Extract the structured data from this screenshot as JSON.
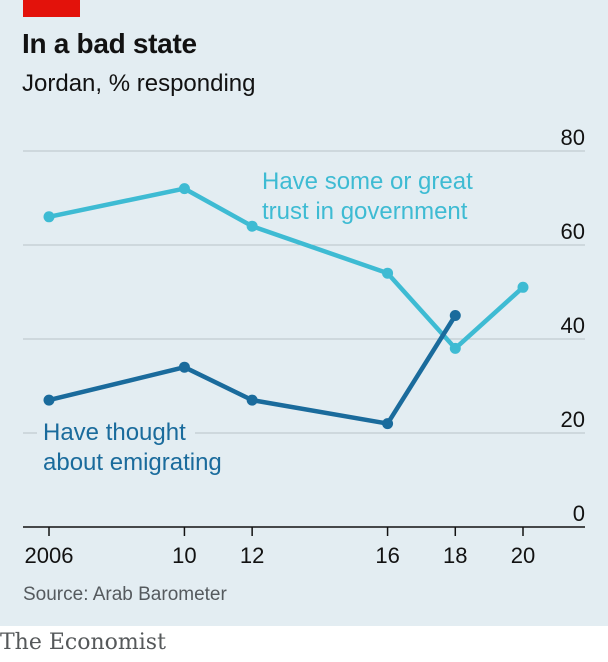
{
  "header": {
    "title": "In a bad state",
    "subtitle": "Jordan, % responding"
  },
  "footer": {
    "source": "Source: Arab Barometer",
    "brand": "The Economist"
  },
  "colors": {
    "background": "#e3edf2",
    "trust_series": "#3ebbd3",
    "emigration_series": "#1a6b9c",
    "grid": "#b9c3c8",
    "axis": "#121212",
    "accent_tag": "#e3120b"
  },
  "chart_data": {
    "type": "line",
    "x": [
      2006,
      2010,
      2012,
      2016,
      2018,
      2020
    ],
    "x_tick_labels": [
      "2006",
      "10",
      "12",
      "16",
      "18",
      "20"
    ],
    "y_ticks": [
      0,
      20,
      40,
      60,
      80
    ],
    "ylim": [
      0,
      80
    ],
    "grid": true,
    "y_axis_side": "right",
    "series": [
      {
        "key": "trust",
        "label_lines": [
          "Have some or great",
          "trust in government"
        ],
        "x": [
          2006,
          2010,
          2012,
          2016,
          2018,
          2020
        ],
        "y": [
          66,
          72,
          64,
          54,
          38,
          51
        ]
      },
      {
        "key": "emigration",
        "label_lines": [
          "Have thought",
          "about emigrating"
        ],
        "x": [
          2006,
          2010,
          2012,
          2016,
          2018
        ],
        "y": [
          27,
          34,
          27,
          22,
          45
        ]
      }
    ]
  }
}
